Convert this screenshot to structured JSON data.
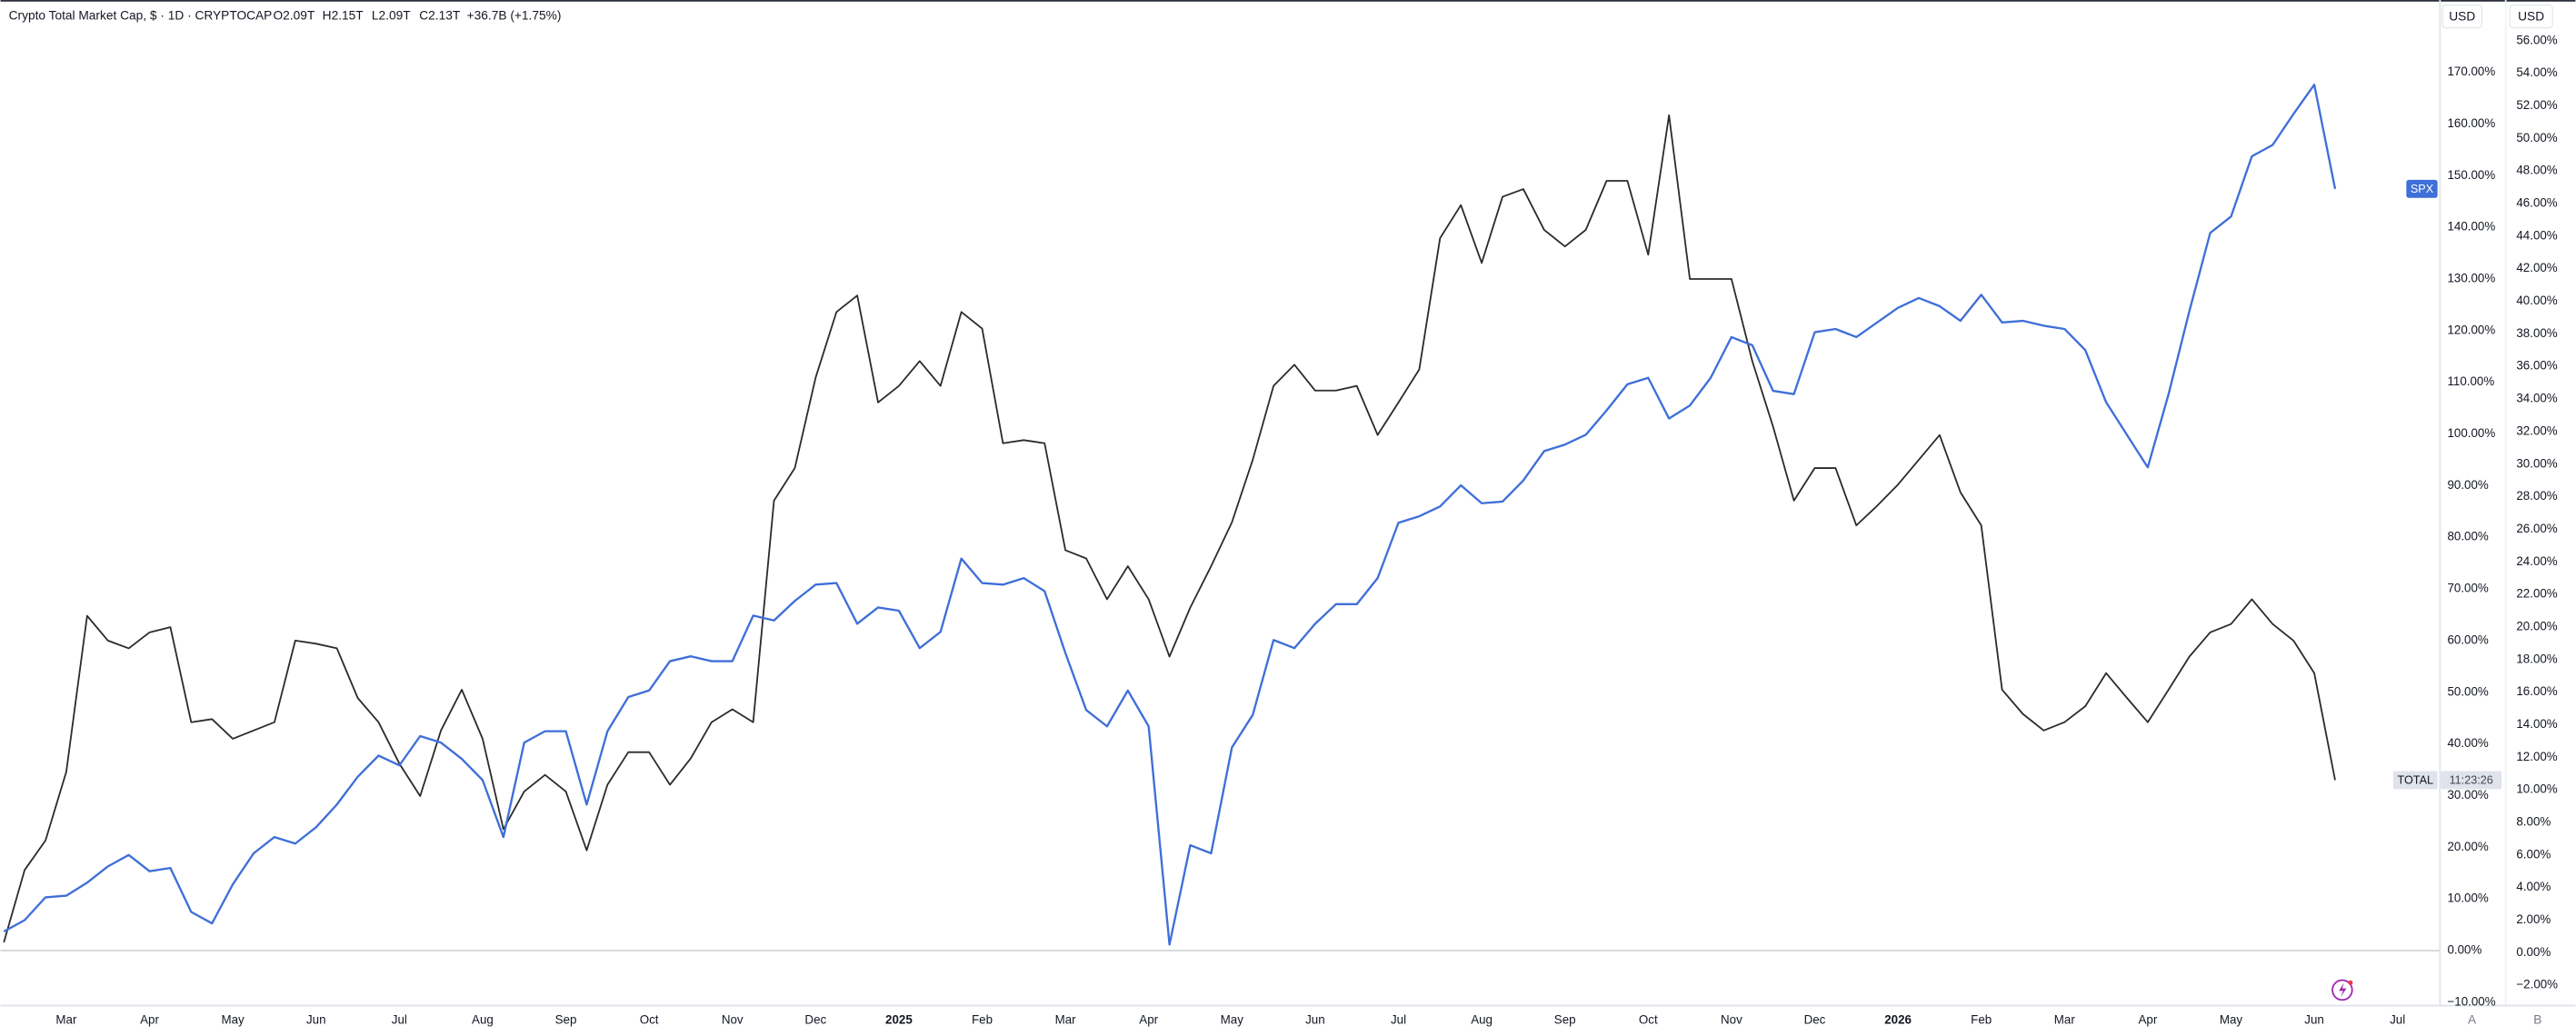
{
  "chart_data": {
    "type": "line",
    "title": "Crypto Total Market Cap, $ · 1D · CRYPTOCAP",
    "legend_values": [
      "O2.09T",
      "H2.15T",
      "L2.09T",
      "C2.13T",
      "+36.7B (+1.75%)"
    ],
    "currency_buttons": [
      "USD",
      "USD"
    ],
    "countdown": "11:23:26",
    "pane_buttons": [
      "A",
      "B"
    ],
    "x": [
      0.25,
      0.5,
      0.75,
      1,
      1.25,
      1.5,
      1.75,
      2,
      2.25,
      2.5,
      2.75,
      3,
      3.25,
      3.5,
      3.75,
      4,
      4.25,
      4.5,
      4.75,
      5,
      5.25,
      5.5,
      5.75,
      6,
      6.25,
      6.5,
      6.75,
      7,
      7.25,
      7.5,
      7.75,
      8,
      8.25,
      8.5,
      8.75,
      9,
      9.25,
      9.5,
      9.75,
      10,
      10.25,
      10.5,
      10.75,
      11,
      11.25,
      11.5,
      11.75,
      12,
      12.25,
      12.5,
      12.75,
      13,
      13.25,
      13.5,
      13.75,
      14,
      14.25,
      14.5,
      14.75,
      15,
      15.25,
      15.5,
      15.75,
      16,
      16.25,
      16.5,
      16.75,
      17,
      17.25,
      17.5,
      17.75,
      18,
      18.25,
      18.5,
      18.75,
      19,
      19.25,
      19.5,
      19.75,
      20,
      20.25,
      20.5,
      20.75,
      21,
      21.25,
      21.5,
      21.75,
      22,
      22.25,
      22.5,
      22.75,
      23,
      23.25,
      23.5,
      23.75,
      24,
      24.25,
      24.5,
      24.75,
      25,
      25.25,
      25.5,
      25.75,
      26,
      26.25,
      26.5,
      26.75,
      27,
      27.25,
      27.5,
      27.75,
      28,
      28.25
    ],
    "series": [
      {
        "name": "TOTAL",
        "color": "#2b2b2b",
        "axis": "y",
        "values": [
          1.6,
          15.6,
          21.3,
          34.6,
          64.8,
          60,
          58.5,
          61.6,
          62.6,
          44.2,
          44.8,
          41,
          42.6,
          44.2,
          60,
          59.4,
          58.5,
          48.9,
          44.2,
          36.2,
          29.9,
          42.6,
          50.5,
          41,
          23.5,
          30.8,
          34,
          30.8,
          19.4,
          32.1,
          38.4,
          38.4,
          32.1,
          37.2,
          44.2,
          46.7,
          44.2,
          87.1,
          93.4,
          110.9,
          123.6,
          126.8,
          106.1,
          109.3,
          114.1,
          109.3,
          123.6,
          120.4,
          98.2,
          98.8,
          98.2,
          77.5,
          75.9,
          68,
          74.4,
          68,
          56.9,
          66.4,
          74.4,
          82.9,
          95,
          109.3,
          113.4,
          108.4,
          108.4,
          109.3,
          99.8,
          106.1,
          112.5,
          137.9,
          144.3,
          133.1,
          145.9,
          147.4,
          139.5,
          136.3,
          139.5,
          149,
          149,
          134.7,
          161.7,
          130,
          130,
          130,
          114.1,
          101.4,
          87.1,
          93.4,
          93.4,
          82.3,
          86.1,
          90.2,
          95,
          99.8,
          88.7,
          82.3,
          50.5,
          45.8,
          42.6,
          44.2,
          47.3,
          53.7,
          48.9,
          44.2,
          50.5,
          56.9,
          61.6,
          63.2,
          68,
          63.2,
          60,
          53.7,
          33
        ]
      },
      {
        "name": "SPX",
        "color": "#3f6fd8",
        "axis": "y2",
        "values": [
          1.3,
          2,
          3.4,
          3.5,
          4.3,
          5.3,
          6,
          5,
          5.2,
          2.5,
          1.8,
          4.2,
          6.1,
          7.1,
          6.7,
          7.7,
          9.1,
          10.8,
          12.1,
          11.5,
          13.3,
          12.9,
          11.9,
          10.6,
          7.1,
          12.9,
          13.6,
          13.6,
          9.1,
          13.6,
          15.7,
          16.1,
          17.9,
          18.2,
          17.9,
          17.9,
          20.7,
          20.4,
          21.6,
          22.6,
          22.7,
          20.2,
          21.2,
          21,
          18.7,
          19.7,
          24.2,
          22.7,
          22.6,
          23,
          22.2,
          18.4,
          14.9,
          13.9,
          16.1,
          13.9,
          0.5,
          6.6,
          6.1,
          12.6,
          14.6,
          19.2,
          18.7,
          20.2,
          21.4,
          21.4,
          23,
          26.4,
          26.8,
          27.4,
          28.7,
          27.6,
          27.7,
          29,
          30.8,
          31.2,
          31.8,
          33.3,
          34.9,
          35.3,
          32.8,
          33.6,
          35.3,
          37.8,
          37.3,
          34.5,
          34.3,
          38.1,
          38.3,
          37.8,
          38.7,
          39.6,
          40.2,
          39.7,
          38.8,
          40.4,
          38.7,
          38.8,
          38.5,
          38.3,
          37,
          33.8,
          31.8,
          29.8,
          34.3,
          39.4,
          44.2,
          45.2,
          48.9,
          49.6,
          51.5,
          53.3,
          46.9
        ]
      }
    ],
    "xlim": [
      0.21,
      29.5
    ],
    "xticks": [
      {
        "value": 1,
        "label": "Mar"
      },
      {
        "value": 2,
        "label": "Apr"
      },
      {
        "value": 3,
        "label": "May"
      },
      {
        "value": 4,
        "label": "Jun"
      },
      {
        "value": 5,
        "label": "Jul"
      },
      {
        "value": 6,
        "label": "Aug"
      },
      {
        "value": 7,
        "label": "Sep"
      },
      {
        "value": 8,
        "label": "Oct"
      },
      {
        "value": 9,
        "label": "Nov"
      },
      {
        "value": 10,
        "label": "Dec"
      },
      {
        "value": 11,
        "label": "2025"
      },
      {
        "value": 12,
        "label": "Feb"
      },
      {
        "value": 13,
        "label": "Mar"
      },
      {
        "value": 14,
        "label": "Apr"
      },
      {
        "value": 15,
        "label": "May"
      },
      {
        "value": 16,
        "label": "Jun"
      },
      {
        "value": 17,
        "label": "Jul"
      },
      {
        "value": 18,
        "label": "Aug"
      },
      {
        "value": 19,
        "label": "Sep"
      },
      {
        "value": 20,
        "label": "Oct"
      },
      {
        "value": 21,
        "label": "Nov"
      },
      {
        "value": 22,
        "label": "Dec"
      },
      {
        "value": 23,
        "label": "2026"
      },
      {
        "value": 24,
        "label": "Feb"
      },
      {
        "value": 25,
        "label": "Mar"
      },
      {
        "value": 26,
        "label": "Apr"
      },
      {
        "value": 27,
        "label": "May"
      },
      {
        "value": 28,
        "label": "Jun"
      },
      {
        "value": 29,
        "label": "Jul"
      }
    ],
    "ylim": [
      -10.5,
      184
    ],
    "yticks": [
      {
        "value": -10,
        "label": "−10.00%"
      },
      {
        "value": 0,
        "label": "0.00%"
      },
      {
        "value": 10,
        "label": "10.00%"
      },
      {
        "value": 20,
        "label": "20.00%"
      },
      {
        "value": 30,
        "label": "30.00%"
      },
      {
        "value": 40,
        "label": "40.00%"
      },
      {
        "value": 50,
        "label": "50.00%"
      },
      {
        "value": 60,
        "label": "60.00%"
      },
      {
        "value": 70,
        "label": "70.00%"
      },
      {
        "value": 80,
        "label": "80.00%"
      },
      {
        "value": 90,
        "label": "90.00%"
      },
      {
        "value": 100,
        "label": "100.00%"
      },
      {
        "value": 110,
        "label": "110.00%"
      },
      {
        "value": 120,
        "label": "120.00%"
      },
      {
        "value": 130,
        "label": "130.00%"
      },
      {
        "value": 140,
        "label": "140.00%"
      },
      {
        "value": 150,
        "label": "150.00%"
      },
      {
        "value": 160,
        "label": "160.00%"
      },
      {
        "value": 170,
        "label": "170.00%"
      }
    ],
    "y2lim": [
      -3.2,
      58.5
    ],
    "y2ticks": [
      {
        "value": -2,
        "label": "−2.00%"
      },
      {
        "value": 0,
        "label": "0.00%"
      },
      {
        "value": 2,
        "label": "2.00%"
      },
      {
        "value": 4,
        "label": "4.00%"
      },
      {
        "value": 6,
        "label": "6.00%"
      },
      {
        "value": 8,
        "label": "8.00%"
      },
      {
        "value": 10,
        "label": "10.00%"
      },
      {
        "value": 12,
        "label": "12.00%"
      },
      {
        "value": 14,
        "label": "14.00%"
      },
      {
        "value": 16,
        "label": "16.00%"
      },
      {
        "value": 18,
        "label": "18.00%"
      },
      {
        "value": 20,
        "label": "20.00%"
      },
      {
        "value": 22,
        "label": "22.00%"
      },
      {
        "value": 24,
        "label": "24.00%"
      },
      {
        "value": 26,
        "label": "26.00%"
      },
      {
        "value": 28,
        "label": "28.00%"
      },
      {
        "value": 30,
        "label": "30.00%"
      },
      {
        "value": 32,
        "label": "32.00%"
      },
      {
        "value": 34,
        "label": "34.00%"
      },
      {
        "value": 36,
        "label": "36.00%"
      },
      {
        "value": 38,
        "label": "38.00%"
      },
      {
        "value": 40,
        "label": "40.00%"
      },
      {
        "value": 42,
        "label": "42.00%"
      },
      {
        "value": 44,
        "label": "44.00%"
      },
      {
        "value": 46,
        "label": "46.00%"
      },
      {
        "value": 48,
        "label": "48.00%"
      },
      {
        "value": 50,
        "label": "50.00%"
      },
      {
        "value": 52,
        "label": "52.00%"
      },
      {
        "value": 54,
        "label": "54.00%"
      },
      {
        "value": 56,
        "label": "56.00%"
      }
    ],
    "grid": false
  }
}
